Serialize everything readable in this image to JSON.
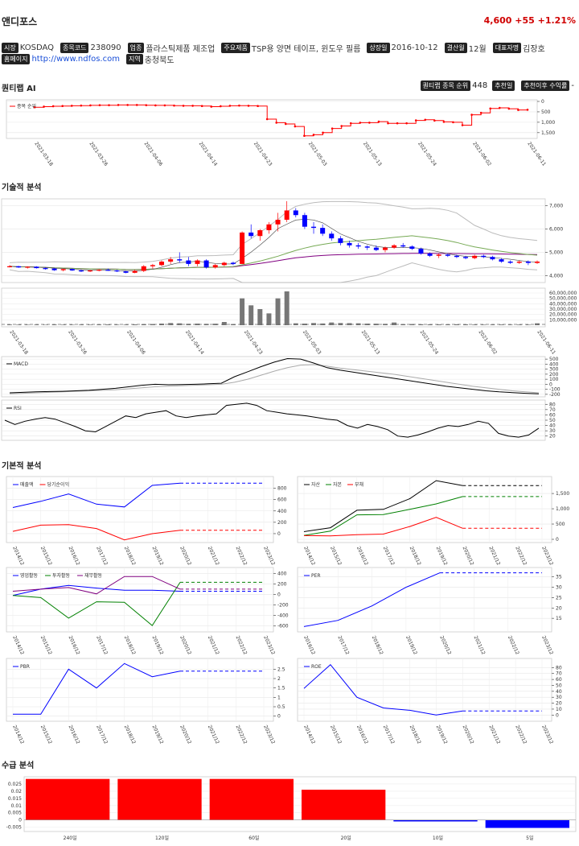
{
  "header": {
    "name": "앤디포스",
    "price_text": "4,600 +55 +1.21%"
  },
  "info_row1": [
    {
      "label": "시장",
      "value": "KOSDAQ"
    },
    {
      "label": "종목코드",
      "value": "238090"
    },
    {
      "label": "업종",
      "value": "플라스틱제품 제조업"
    },
    {
      "label": "주요제품",
      "value": "TSP용 양면 테이프, 윈도우 필름"
    },
    {
      "label": "상장일",
      "value": "2016-10-12"
    },
    {
      "label": "결산월",
      "value": "12월"
    },
    {
      "label": "대표자명",
      "value": "김장호"
    }
  ],
  "info_row2": {
    "homepage_label": "홈페이지",
    "homepage": "http://www.ndfos.com",
    "region_label": "지역",
    "region": "충청북도"
  },
  "sections": {
    "quant": "퀀티랩 AI",
    "tech": "기술적 분석",
    "fund": "기본적 분석",
    "flow": "수급 분석"
  },
  "rank_bar": {
    "rank_label": "퀀티랩 종목 순위",
    "rank_value": "448",
    "rec_date_label": "추천일",
    "rec_return_label": "추천이후 수익률",
    "rec_return_value": "-"
  },
  "colors": {
    "up": "#ff0000",
    "down": "#0000ff",
    "green": "#008000",
    "purple": "#800080",
    "gray": "#888888"
  },
  "chart_data": [
    {
      "id": "rank",
      "type": "line",
      "legend": [
        "종목 순위"
      ],
      "y_ticks": [
        "0",
        "500",
        "1,000",
        "1,500"
      ],
      "ylim": [
        0,
        1700
      ],
      "invert_y": true,
      "x_labels": [
        "2021-03-18",
        "2021-03-26",
        "2021-04-06",
        "2021-04-14",
        "2021-04-23",
        "2021-05-03",
        "2021-05-13",
        "2021-05-24",
        "2021-06-02",
        "2021-06-11"
      ],
      "values": [
        280,
        250,
        230,
        220,
        210,
        200,
        190,
        180,
        180,
        170,
        170,
        170,
        180,
        190,
        190,
        200,
        210,
        210,
        220,
        250,
        230,
        210,
        200,
        210,
        220,
        850,
        1020,
        1080,
        1200,
        1650,
        1600,
        1500,
        1300,
        1180,
        1050,
        1020,
        1020,
        970,
        1050,
        1050,
        1050,
        910,
        880,
        920,
        980,
        1000,
        1140,
        640,
        550,
        340,
        310,
        350,
        410,
        400
      ]
    },
    {
      "id": "price",
      "type": "candlestick",
      "y_ticks": [
        "4,000",
        "5,000",
        "6,000",
        "7,000"
      ],
      "ylim": [
        3700,
        7300
      ],
      "ohlc": [
        [
          4400,
          4450,
          4350,
          4400
        ],
        [
          4400,
          4420,
          4330,
          4350
        ],
        [
          4350,
          4400,
          4300,
          4380
        ],
        [
          4380,
          4400,
          4300,
          4320
        ],
        [
          4320,
          4350,
          4250,
          4300
        ],
        [
          4300,
          4330,
          4200,
          4230
        ],
        [
          4230,
          4300,
          4180,
          4280
        ],
        [
          4280,
          4300,
          4200,
          4220
        ],
        [
          4220,
          4260,
          4150,
          4200
        ],
        [
          4200,
          4250,
          4150,
          4220
        ],
        [
          4220,
          4270,
          4180,
          4250
        ],
        [
          4250,
          4300,
          4200,
          4220
        ],
        [
          4220,
          4250,
          4150,
          4180
        ],
        [
          4180,
          4200,
          4100,
          4120
        ],
        [
          4120,
          4250,
          4100,
          4200
        ],
        [
          4200,
          4450,
          4150,
          4400
        ],
        [
          4400,
          4500,
          4300,
          4450
        ],
        [
          4450,
          4650,
          4400,
          4600
        ],
        [
          4600,
          4800,
          4500,
          4700
        ],
        [
          4700,
          5000,
          4550,
          4650
        ],
        [
          4650,
          4800,
          4400,
          4500
        ],
        [
          4500,
          4700,
          4400,
          4650
        ],
        [
          4650,
          4700,
          4300,
          4350
        ],
        [
          4350,
          4500,
          4300,
          4450
        ],
        [
          4450,
          4600,
          4400,
          4550
        ],
        [
          4550,
          4600,
          4450,
          4500
        ],
        [
          4500,
          5900,
          4500,
          5850
        ],
        [
          5850,
          6200,
          5600,
          5700
        ],
        [
          5700,
          6000,
          5500,
          5950
        ],
        [
          5950,
          6300,
          5800,
          6200
        ],
        [
          6200,
          6700,
          5900,
          6400
        ],
        [
          6400,
          7200,
          6300,
          6800
        ],
        [
          6800,
          6900,
          6500,
          6600
        ],
        [
          6600,
          6700,
          6000,
          6100
        ],
        [
          6100,
          6300,
          5800,
          6050
        ],
        [
          6050,
          6200,
          5700,
          5800
        ],
        [
          5800,
          5900,
          5500,
          5600
        ],
        [
          5600,
          5700,
          5300,
          5400
        ],
        [
          5400,
          5500,
          5200,
          5300
        ],
        [
          5300,
          5400,
          5150,
          5250
        ],
        [
          5250,
          5300,
          5100,
          5200
        ],
        [
          5200,
          5300,
          5050,
          5100
        ],
        [
          5100,
          5250,
          5000,
          5200
        ],
        [
          5200,
          5350,
          5150,
          5300
        ],
        [
          5300,
          5400,
          5200,
          5250
        ],
        [
          5250,
          5300,
          5100,
          5150
        ],
        [
          5150,
          5200,
          4900,
          4950
        ],
        [
          4950,
          5000,
          4800,
          4850
        ],
        [
          4850,
          4950,
          4750,
          4900
        ],
        [
          4900,
          4950,
          4800,
          4850
        ],
        [
          4850,
          4900,
          4750,
          4800
        ],
        [
          4800,
          4850,
          4700,
          4750
        ],
        [
          4750,
          4900,
          4700,
          4850
        ],
        [
          4850,
          4900,
          4750,
          4800
        ],
        [
          4800,
          4850,
          4650,
          4700
        ],
        [
          4700,
          4750,
          4550,
          4600
        ],
        [
          4600,
          4650,
          4500,
          4550
        ],
        [
          4550,
          4650,
          4500,
          4600
        ],
        [
          4600,
          4650,
          4450,
          4545
        ],
        [
          4545,
          4650,
          4500,
          4600
        ]
      ],
      "volume_ticks": [
        "10,000,000",
        "20,000,000",
        "30,000,000",
        "40,000,000",
        "50,000,000",
        "60,000,000"
      ],
      "volume": [
        1.2,
        1.0,
        0.9,
        1.1,
        0.8,
        1.3,
        1.0,
        0.9,
        1.1,
        1.0,
        1.2,
        1.4,
        1.0,
        1.1,
        1.5,
        2.0,
        2.2,
        3.0,
        4.0,
        3.5,
        2.6,
        3.0,
        2.5,
        2.8,
        6.0,
        2.1,
        50,
        37,
        30,
        22,
        50,
        63,
        3.5,
        3.0,
        4.0,
        3.2,
        5.0,
        4.0,
        3.8,
        3.5,
        3.0,
        2.8,
        2.5,
        5.0,
        2.0,
        2.2,
        1.8,
        1.6,
        1.5,
        1.4,
        1.8,
        1.6,
        1.2,
        1.0,
        1.1,
        1.3,
        1.0,
        1.2,
        1.0,
        3.5
      ]
    },
    {
      "id": "macd",
      "type": "line",
      "legend": [
        "MACD"
      ],
      "y_ticks": [
        "-200",
        "-100",
        "0",
        "100",
        "200",
        "300",
        "400",
        "500"
      ],
      "ylim": [
        -250,
        550
      ],
      "macd": [
        -170,
        -160,
        -150,
        -145,
        -140,
        -130,
        -120,
        -100,
        -80,
        -50,
        -20,
        0,
        -10,
        -5,
        0,
        10,
        20,
        150,
        250,
        350,
        440,
        510,
        500,
        420,
        330,
        280,
        240,
        200,
        160,
        120,
        80,
        40,
        0,
        -40,
        -70,
        -100,
        -130,
        -150,
        -165,
        -180,
        -190
      ],
      "signal": [
        -190,
        -180,
        -170,
        -160,
        -150,
        -140,
        -130,
        -120,
        -110,
        -90,
        -70,
        -50,
        -40,
        -30,
        -20,
        -10,
        0,
        40,
        100,
        180,
        260,
        330,
        380,
        390,
        360,
        320,
        290,
        260,
        230,
        200,
        160,
        120,
        80,
        40,
        0,
        -40,
        -70,
        -100,
        -130,
        -150,
        -170
      ]
    },
    {
      "id": "rsi",
      "type": "line",
      "legend": [
        "RSI"
      ],
      "y_ticks": [
        "20",
        "30",
        "40",
        "50",
        "60",
        "70",
        "80"
      ],
      "ylim": [
        12,
        88
      ],
      "values": [
        50,
        42,
        48,
        52,
        55,
        52,
        45,
        38,
        30,
        28,
        38,
        48,
        58,
        55,
        62,
        65,
        68,
        58,
        55,
        58,
        60,
        62,
        78,
        80,
        82,
        78,
        68,
        65,
        62,
        60,
        58,
        55,
        52,
        50,
        40,
        35,
        42,
        38,
        32,
        20,
        18,
        22,
        28,
        35,
        40,
        38,
        42,
        48,
        44,
        25,
        20,
        18,
        22,
        35
      ]
    },
    {
      "id": "revenue",
      "type": "line",
      "legend": [
        "매출액",
        "당기순이익"
      ],
      "categories": [
        "2014/12",
        "2015/12",
        "2016/12",
        "2017/12",
        "2018/12",
        "2019/12",
        "2020/12",
        "2021/12",
        "2022/12",
        "2023/12"
      ],
      "y_ticks": [
        "0",
        "200",
        "400",
        "600",
        "800"
      ],
      "ylim": [
        -100,
        950
      ],
      "series": [
        {
          "values": [
            460,
            570,
            700,
            520,
            470,
            850,
            890,
            890,
            890,
            890
          ]
        },
        {
          "values": [
            40,
            150,
            160,
            90,
            -110,
            0,
            60,
            60,
            60,
            60
          ]
        }
      ],
      "forecast_from": 6
    },
    {
      "id": "assets",
      "type": "line",
      "legend": [
        "자산",
        "자본",
        "부채"
      ],
      "categories": [
        "2014/12",
        "2015/12",
        "2016/12",
        "2017/12",
        "2018/12",
        "2019/12",
        "2020/12",
        "2021/12",
        "2022/12",
        "2023/12"
      ],
      "y_ticks": [
        "0",
        "500",
        "1,000",
        "1,500"
      ],
      "ylim": [
        0,
        1950
      ],
      "series": [
        {
          "values": [
            250,
            380,
            950,
            980,
            1330,
            1920,
            1760,
            1760,
            1760,
            1760
          ]
        },
        {
          "values": [
            130,
            270,
            800,
            810,
            980,
            1160,
            1400,
            1400,
            1400,
            1400
          ]
        },
        {
          "values": [
            120,
            110,
            150,
            170,
            420,
            720,
            360,
            360,
            360,
            360
          ]
        }
      ],
      "forecast_from": 6
    },
    {
      "id": "cashflow",
      "type": "line",
      "legend": [
        "영업활동",
        "투자활동",
        "재무활동"
      ],
      "categories": [
        "2014/12",
        "2015/12",
        "2016/12",
        "2017/12",
        "2018/12",
        "2019/12",
        "2020/12",
        "2021/12",
        "2022/12",
        "2023/12"
      ],
      "y_ticks": [
        "-600",
        "-400",
        "-200",
        "0",
        "200",
        "400"
      ],
      "ylim": [
        -650,
        450
      ],
      "series": [
        {
          "values": [
            -20,
            100,
            170,
            120,
            80,
            80,
            60,
            60,
            60,
            60
          ]
        },
        {
          "values": [
            -20,
            -60,
            -450,
            -140,
            -150,
            -590,
            230,
            230,
            230,
            230
          ]
        },
        {
          "values": [
            60,
            100,
            130,
            10,
            340,
            340,
            100,
            100,
            100,
            100
          ]
        }
      ],
      "forecast_from": 6
    },
    {
      "id": "per",
      "type": "line",
      "legend": [
        "PER"
      ],
      "categories": [
        "2016/12",
        "2017/12",
        "2018/12",
        "2019/12",
        "2020/12",
        "2021/12",
        "2022/12",
        "2023/12"
      ],
      "y_ticks": [
        "15",
        "20",
        "25",
        "30",
        "35"
      ],
      "ylim": [
        10,
        38
      ],
      "series": [
        {
          "values": [
            11,
            14,
            21,
            30,
            37,
            37,
            37,
            37
          ]
        }
      ],
      "forecast_from": 4
    },
    {
      "id": "pbr",
      "type": "line",
      "legend": [
        "PBR"
      ],
      "categories": [
        "2014/12",
        "2015/12",
        "2016/12",
        "2017/12",
        "2018/12",
        "2019/12",
        "2020/12",
        "2021/12",
        "2022/12",
        "2023/12"
      ],
      "y_ticks": [
        "0",
        "0.5",
        "1",
        "1.5",
        "2",
        "2.5"
      ],
      "ylim": [
        -0.1,
        2.9
      ],
      "series": [
        {
          "values": [
            0.1,
            0.1,
            2.5,
            1.5,
            2.8,
            2.1,
            2.4,
            2.4,
            2.4,
            2.4
          ]
        }
      ],
      "forecast_from": 6
    },
    {
      "id": "roe",
      "type": "line",
      "legend": [
        "ROE"
      ],
      "categories": [
        "2014/12",
        "2015/12",
        "2016/12",
        "2017/12",
        "2018/12",
        "2019/12",
        "2020/12",
        "2021/12",
        "2022/12",
        "2023/12"
      ],
      "y_ticks": [
        "0",
        "10",
        "20",
        "30",
        "40",
        "50",
        "60",
        "70",
        "80"
      ],
      "ylim": [
        -5,
        90
      ],
      "series": [
        {
          "values": [
            45,
            85,
            30,
            12,
            8,
            0,
            7,
            7,
            7,
            7
          ]
        }
      ],
      "forecast_from": 6
    },
    {
      "id": "flow",
      "type": "bar",
      "categories": [
        "240일",
        "120일",
        "60일",
        "20일",
        "10일",
        "5일"
      ],
      "values": [
        0.0285,
        0.0285,
        0.0285,
        0.021,
        -0.001,
        -0.0055
      ],
      "y_ticks": [
        "-0.005",
        "0",
        "0.005",
        "0.01",
        "0.015",
        "0.02",
        "0.025"
      ],
      "ylim": [
        -0.008,
        0.03
      ]
    }
  ]
}
